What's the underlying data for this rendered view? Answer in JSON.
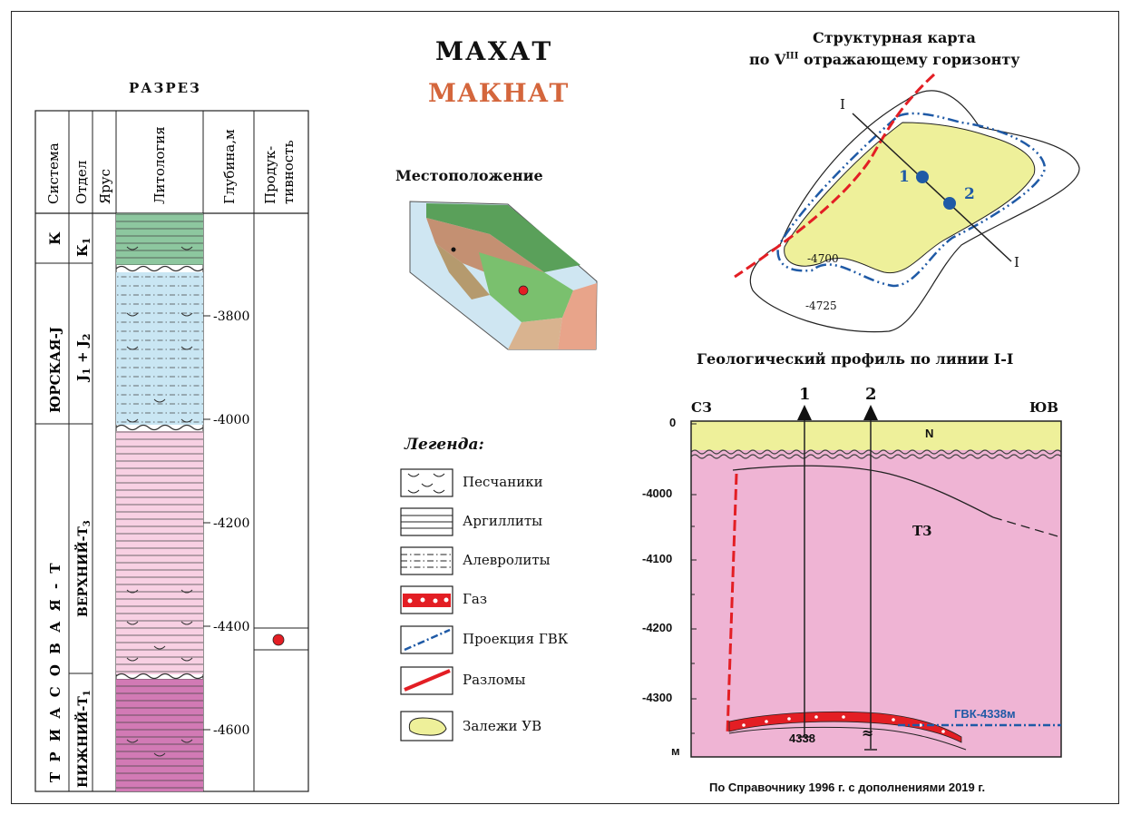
{
  "title_main": "МАХАТ",
  "title_alt": "МАКНАТ",
  "section": {
    "title": "РАЗРЕЗ",
    "headers": [
      "Система",
      "Отдел",
      "Ярус",
      "Литология",
      "Глубина,м",
      "Продук-\nтивность"
    ],
    "system_labels": [
      "К",
      "ЮРСКАЯ-J",
      "Т Р И А С О В А Я - Т"
    ],
    "series_labels": [
      "К1",
      "J1 + J2",
      "ВЕРХНИЙ-Т3",
      "НИЖНИЙ-Т1"
    ],
    "depth_ticks": [
      "3800",
      "4000",
      "4200",
      "4400",
      "4600"
    ]
  },
  "location": {
    "title": "Местоположение"
  },
  "legend": {
    "title": "Легенда:",
    "items": [
      "Песчаники",
      "Аргиллиты",
      "Алевролиты",
      "Газ",
      "Проекция ГВК",
      "Разломы",
      "Залежи УВ"
    ]
  },
  "map": {
    "title_line1": "Структурная карта",
    "title_line2_pre": "по  V",
    "title_line2_sup": "III",
    "title_line2_post": " отражающему горизонту",
    "contours": [
      "-4700",
      "-4725"
    ],
    "line_label_start": "I",
    "line_label_end": "I",
    "wells": [
      "1",
      "2"
    ]
  },
  "profile": {
    "title": "Геологический профиль по линии I-I",
    "left_label": "СЗ",
    "right_label": "ЮВ",
    "wells": [
      "1",
      "2"
    ],
    "depth_ticks": [
      "0",
      "-4000",
      "-4100",
      "-4200",
      "-4300",
      "м"
    ],
    "layer_top": "N",
    "layer_main": "Т3",
    "gvk_label": "ГВК-4338м",
    "well_depth": "4338",
    "break_mark": "≈"
  },
  "footer": "По Справочнику 1996 г. с дополнениями 2019 г.",
  "colors": {
    "red": "#e31e24",
    "blue": "#1f5aa6",
    "pink": "#efb4d4",
    "lightpink": "#f8d0e3",
    "green": "#8dc79f",
    "lightblue": "#c9e6f3",
    "yellow": "#eef09a",
    "magenta": "#d27ab5"
  }
}
